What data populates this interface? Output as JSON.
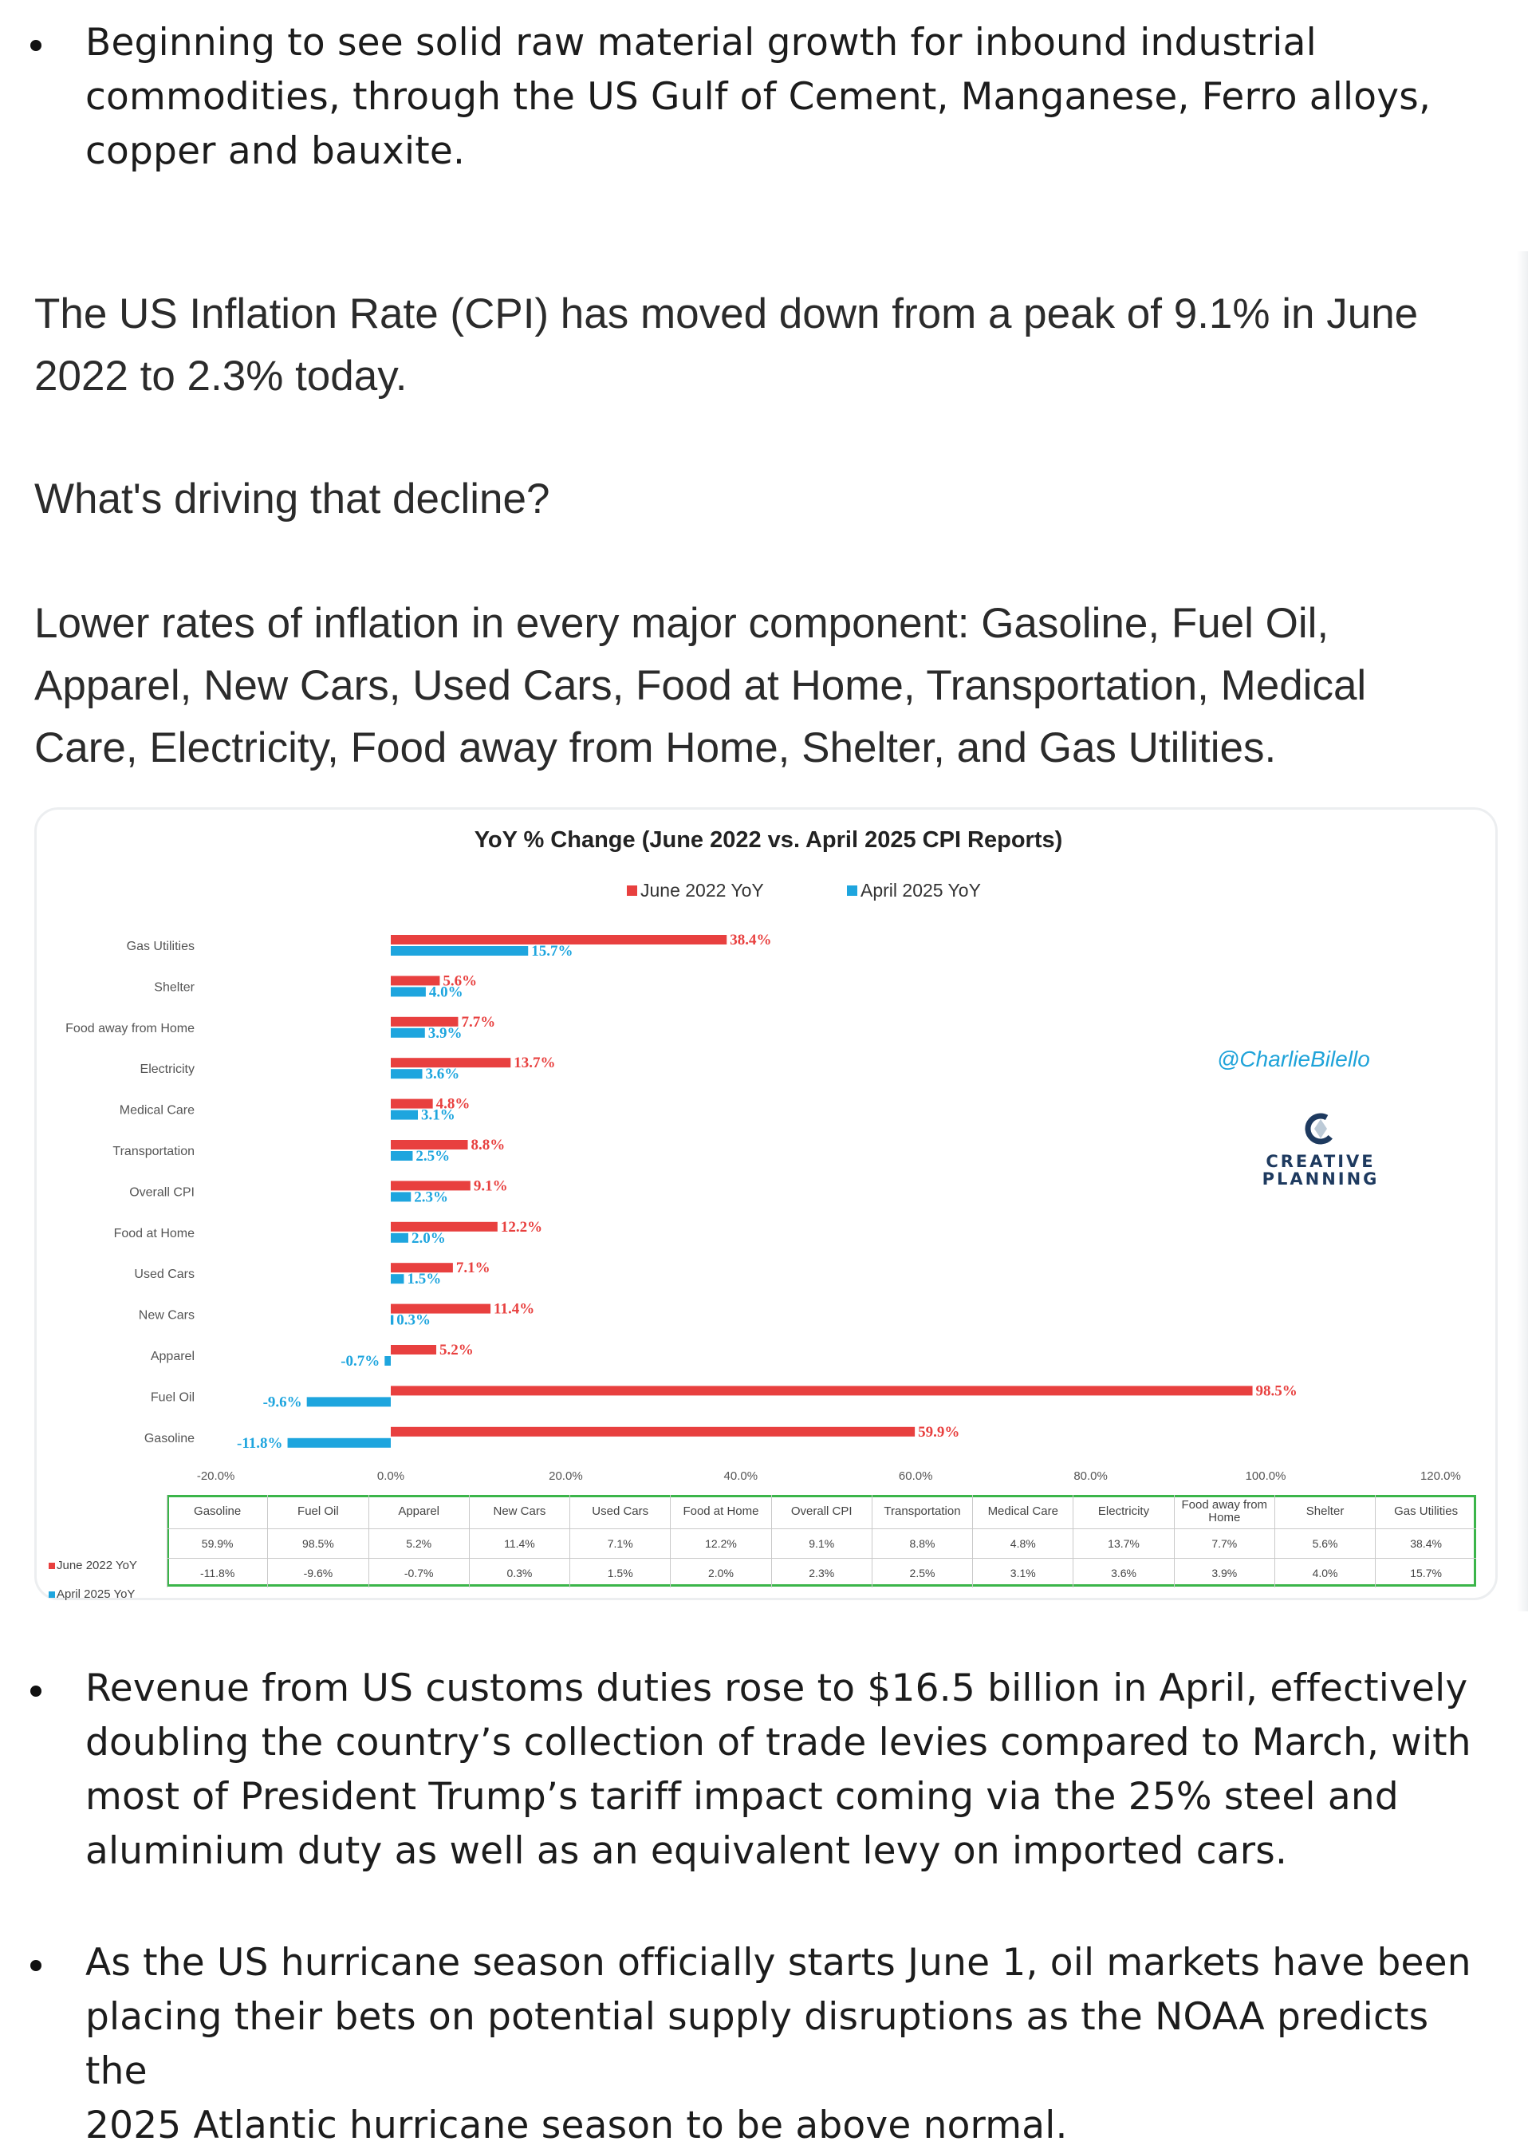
{
  "bullets_top": [
    {
      "text_lines": [
        "Beginning to see solid raw material growth for inbound industrial",
        "commodities, through the US Gulf of Cement, Manganese, Ferro alloys,",
        "copper and bauxite."
      ]
    }
  ],
  "tweet": {
    "para1_lines": [
      "The US Inflation Rate (CPI) has moved down from a peak of 9.1% in June",
      "2022 to 2.3% today."
    ],
    "para2": "What's driving that decline?",
    "para3_lines": [
      "Lower rates of inflation in every major component: Gasoline, Fuel Oil,",
      "Apparel, New Cars, Used Cars, Food at Home, Transportation, Medical",
      "Care, Electricity, Food away from Home, Shelter, and Gas Utilities."
    ]
  },
  "chart_data": {
    "type": "bar",
    "orientation": "horizontal",
    "title": "YoY % Change (June 2022 vs. April 2025 CPI Reports)",
    "categories": [
      "Gas Utilities",
      "Shelter",
      "Food away from Home",
      "Electricity",
      "Medical Care",
      "Transportation",
      "Overall CPI",
      "Food at Home",
      "Used Cars",
      "New Cars",
      "Apparel",
      "Fuel Oil",
      "Gasoline"
    ],
    "series": [
      {
        "name": "June 2022 YoY",
        "color": "#e8403f",
        "values": [
          38.4,
          5.6,
          7.7,
          13.7,
          4.8,
          8.8,
          9.1,
          12.2,
          7.1,
          11.4,
          5.2,
          98.5,
          59.9
        ]
      },
      {
        "name": "April 2025 YoY",
        "color": "#1ea5de",
        "values": [
          15.7,
          4.0,
          3.9,
          3.6,
          3.1,
          2.5,
          2.3,
          2.0,
          1.5,
          0.3,
          -0.7,
          -9.6,
          -11.8
        ]
      }
    ],
    "xlim": [
      -20,
      120
    ],
    "xticks": [
      -20,
      0,
      20,
      40,
      60,
      80,
      100,
      120
    ],
    "xtick_labels": [
      "-20.0%",
      "0.0%",
      "20.0%",
      "40.0%",
      "60.0%",
      "80.0%",
      "100.0%",
      "120.0%"
    ],
    "legend_position": "top",
    "table": {
      "columns": [
        "Gasoline",
        "Fuel Oil",
        "Apparel",
        "New Cars",
        "Used Cars",
        "Food at Home",
        "Overall CPI",
        "Transportation",
        "Medical Care",
        "Electricity",
        "Food away from Home",
        "Shelter",
        "Gas Utilities"
      ],
      "rows": [
        {
          "label": "June 2022 YoY",
          "values": [
            "59.9%",
            "98.5%",
            "5.2%",
            "11.4%",
            "7.1%",
            "12.2%",
            "9.1%",
            "8.8%",
            "4.8%",
            "13.7%",
            "7.7%",
            "5.6%",
            "38.4%"
          ]
        },
        {
          "label": "April 2025 YoY",
          "values": [
            "-11.8%",
            "-9.6%",
            "-0.7%",
            "0.3%",
            "1.5%",
            "2.0%",
            "2.3%",
            "2.5%",
            "3.1%",
            "3.6%",
            "3.9%",
            "4.0%",
            "15.7%"
          ]
        }
      ],
      "border_color": "#3bb54a"
    },
    "watermark": "@CharlieBilello",
    "brand": "CREATIVE PLANNING",
    "brand_icon": "creative-planning-logo"
  },
  "bullets_bottom": [
    {
      "text_lines": [
        "Revenue from US customs duties rose to $16.5 billion in April, effectively",
        "doubling the country’s collection of trade levies compared to March, with",
        "most of President Trump’s tariff impact coming via the 25% steel and",
        "aluminium duty as well as an equivalent levy on imported cars."
      ]
    },
    {
      "text_lines": [
        "As the US hurricane season officially starts June 1, oil markets have been",
        "placing their bets on potential supply disruptions as the NOAA predicts the",
        "2025 Atlantic hurricane season to be above normal."
      ]
    }
  ]
}
